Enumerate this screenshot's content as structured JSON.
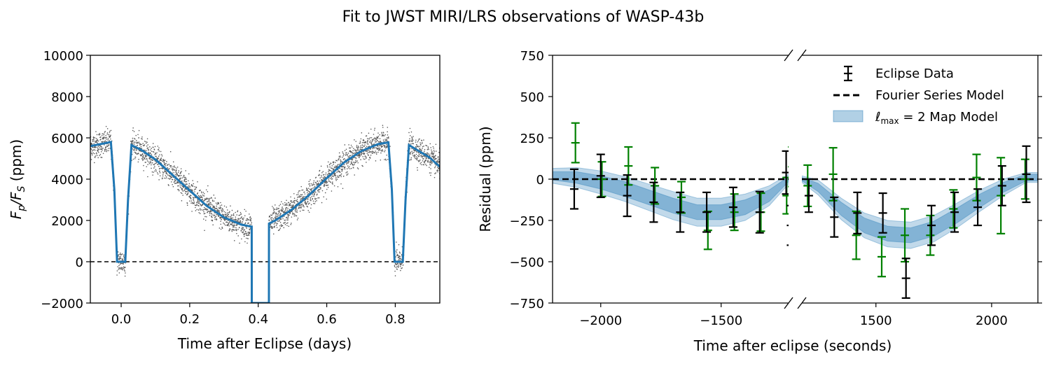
{
  "figure": {
    "suptitle": "Fit to JWST MIRI/LRS observations of WASP-43b"
  },
  "colors": {
    "model_line": "#1f77b4",
    "band": "#1f77b4",
    "eclipse_errbars": "#000000",
    "green_errbars": "#008000",
    "scatter": "#000000"
  },
  "chart_data": [
    {
      "type": "line",
      "name": "phase-curve",
      "title": "",
      "xlabel": "Time after Eclipse (days)",
      "ylabel": "F_p/F_S (ppm)",
      "ylabel_parts": {
        "a": "F",
        "b": "p",
        "c": "/F",
        "d": "S",
        "e": " (ppm)"
      },
      "xlim": [
        -0.09,
        0.93
      ],
      "ylim": [
        -2000,
        10000
      ],
      "xticks": [
        0.0,
        0.2,
        0.4,
        0.6,
        0.8
      ],
      "xtick_labels": [
        "0.0",
        "0.2",
        "0.4",
        "0.6",
        "0.8"
      ],
      "yticks": [
        -2000,
        0,
        2000,
        4000,
        6000,
        8000,
        10000
      ],
      "ytick_labels": [
        "−2000",
        "0",
        "2000",
        "4000",
        "6000",
        "8000",
        "10000"
      ],
      "reference_line": {
        "y": 0,
        "style": "dashed"
      },
      "model": {
        "x": [
          -0.09,
          -0.06,
          -0.03,
          -0.02,
          -0.012,
          0.0,
          0.012,
          0.02,
          0.03,
          0.06,
          0.1,
          0.15,
          0.2,
          0.25,
          0.3,
          0.35,
          0.38,
          0.381,
          0.3812,
          0.4312,
          0.4314,
          0.45,
          0.5,
          0.55,
          0.6,
          0.65,
          0.7,
          0.75,
          0.78,
          0.79,
          0.798,
          0.81,
          0.822,
          0.83,
          0.84,
          0.87,
          0.9,
          0.93
        ],
        "y": [
          5600,
          5700,
          5800,
          3500,
          0,
          0,
          0,
          3000,
          5650,
          5400,
          4950,
          4200,
          3450,
          2700,
          2150,
          1800,
          1700,
          1700,
          -2000,
          -2000,
          1850,
          2000,
          2550,
          3250,
          4050,
          4800,
          5350,
          5700,
          5780,
          3500,
          0,
          0,
          0,
          3000,
          5650,
          5350,
          5050,
          4600
        ]
      },
      "scatter_noise": {
        "sigma_ppm": 320,
        "points": 3200
      }
    },
    {
      "type": "scatter",
      "name": "eclipse-residuals",
      "xlabel": "Time after eclipse (seconds)",
      "ylabel": "Residual (ppm)",
      "ylim": [
        -750,
        750
      ],
      "yticks": [
        -750,
        -500,
        -250,
        0,
        250,
        500,
        750
      ],
      "ytick_labels": [
        "−750",
        "−500",
        "−250",
        "0",
        "250",
        "500",
        "750"
      ],
      "reference_line": {
        "y": 0,
        "style": "dashed"
      },
      "broken_axis": true,
      "segments": [
        {
          "xlim": [
            -2200,
            -1220
          ],
          "xticks": [
            -2000,
            -1500
          ],
          "xtick_labels": [
            "−2000",
            "−1500"
          ],
          "eclipse_data": [
            {
              "x": -2110,
              "y": -60,
              "err": 120
            },
            {
              "x": -2000,
              "y": 20,
              "err": 130
            },
            {
              "x": -1890,
              "y": -100,
              "err": 125
            },
            {
              "x": -1780,
              "y": -140,
              "err": 120
            },
            {
              "x": -1670,
              "y": -200,
              "err": 120
            },
            {
              "x": -1560,
              "y": -200,
              "err": 120
            },
            {
              "x": -1450,
              "y": -170,
              "err": 120
            },
            {
              "x": -1340,
              "y": -200,
              "err": 125
            },
            {
              "x": -1230,
              "y": 40,
              "err": 130
            },
            {
              "x": -1210,
              "y": -280,
              "err": 120
            }
          ],
          "secondary_data": [
            {
              "x": -2220,
              "y": 70,
              "err": 120
            },
            {
              "x": -2105,
              "y": 220,
              "err": 120
            },
            {
              "x": -1995,
              "y": 0,
              "err": 105
            },
            {
              "x": -1885,
              "y": 80,
              "err": 115
            },
            {
              "x": -1775,
              "y": -40,
              "err": 110
            },
            {
              "x": -1665,
              "y": -110,
              "err": 95
            },
            {
              "x": -1555,
              "y": -310,
              "err": 115
            },
            {
              "x": -1445,
              "y": -200,
              "err": 110
            },
            {
              "x": -1335,
              "y": -200,
              "err": 115
            },
            {
              "x": -1228,
              "y": -100,
              "err": 110
            },
            {
              "x": -1205,
              "y": 75,
              "err": 120
            }
          ],
          "map_model": {
            "x": [
              -2200,
              -2100,
              -2000,
              -1900,
              -1800,
              -1700,
              -1600,
              -1500,
              -1400,
              -1300,
              -1220
            ],
            "mid": [
              20,
              10,
              -20,
              -60,
              -110,
              -160,
              -200,
              -200,
              -170,
              -100,
              0
            ],
            "inner": [
              25,
              35,
              40,
              45,
              45,
              45,
              45,
              45,
              45,
              35,
              15
            ],
            "outer": [
              45,
              60,
              70,
              75,
              80,
              85,
              85,
              85,
              80,
              60,
              30
            ]
          }
        },
        {
          "xlim": [
            1180,
            2200
          ],
          "xticks": [
            1500,
            2000
          ],
          "xtick_labels": [
            "1500",
            "2000"
          ],
          "eclipse_data": [
            {
              "x": 1210,
              "y": -100,
              "err": 100
            },
            {
              "x": 1320,
              "y": -230,
              "err": 120
            },
            {
              "x": 1420,
              "y": -205,
              "err": 125
            },
            {
              "x": 1530,
              "y": -205,
              "err": 120
            },
            {
              "x": 1630,
              "y": -600,
              "err": 120
            },
            {
              "x": 1740,
              "y": -280,
              "err": 120
            },
            {
              "x": 1840,
              "y": -200,
              "err": 120
            },
            {
              "x": 1940,
              "y": -170,
              "err": 110
            },
            {
              "x": 2045,
              "y": -40,
              "err": 120
            },
            {
              "x": 2150,
              "y": 30,
              "err": 170
            }
          ],
          "secondary_data": [
            {
              "x": 1205,
              "y": -40,
              "err": 125
            },
            {
              "x": 1315,
              "y": 30,
              "err": 160
            },
            {
              "x": 1415,
              "y": -340,
              "err": 145
            },
            {
              "x": 1525,
              "y": -470,
              "err": 120
            },
            {
              "x": 1625,
              "y": -340,
              "err": 160
            },
            {
              "x": 1735,
              "y": -340,
              "err": 120
            },
            {
              "x": 1835,
              "y": -180,
              "err": 115
            },
            {
              "x": 1935,
              "y": 10,
              "err": 140
            },
            {
              "x": 2040,
              "y": -100,
              "err": 230
            },
            {
              "x": 2145,
              "y": 0,
              "err": 120
            }
          ],
          "map_model": {
            "x": [
              1180,
              1250,
              1350,
              1450,
              1550,
              1650,
              1750,
              1850,
              1950,
              2050,
              2150,
              2200
            ],
            "mid": [
              0,
              -50,
              -180,
              -280,
              -330,
              -340,
              -300,
              -220,
              -130,
              -50,
              10,
              10
            ],
            "inner": [
              10,
              25,
              40,
              45,
              45,
              45,
              45,
              45,
              40,
              30,
              20,
              20
            ],
            "outer": [
              20,
              45,
              65,
              75,
              80,
              80,
              80,
              75,
              65,
              50,
              30,
              30
            ]
          }
        }
      ],
      "legend": {
        "position": "top-right",
        "entries": [
          "Eclipse Data",
          "Fourier Series Model",
          "ℓmax = 2 Map Model"
        ],
        "map_label_parts": {
          "ell": "ℓ",
          "sub": "max",
          "rest": " = 2 Map Model"
        }
      }
    }
  ]
}
